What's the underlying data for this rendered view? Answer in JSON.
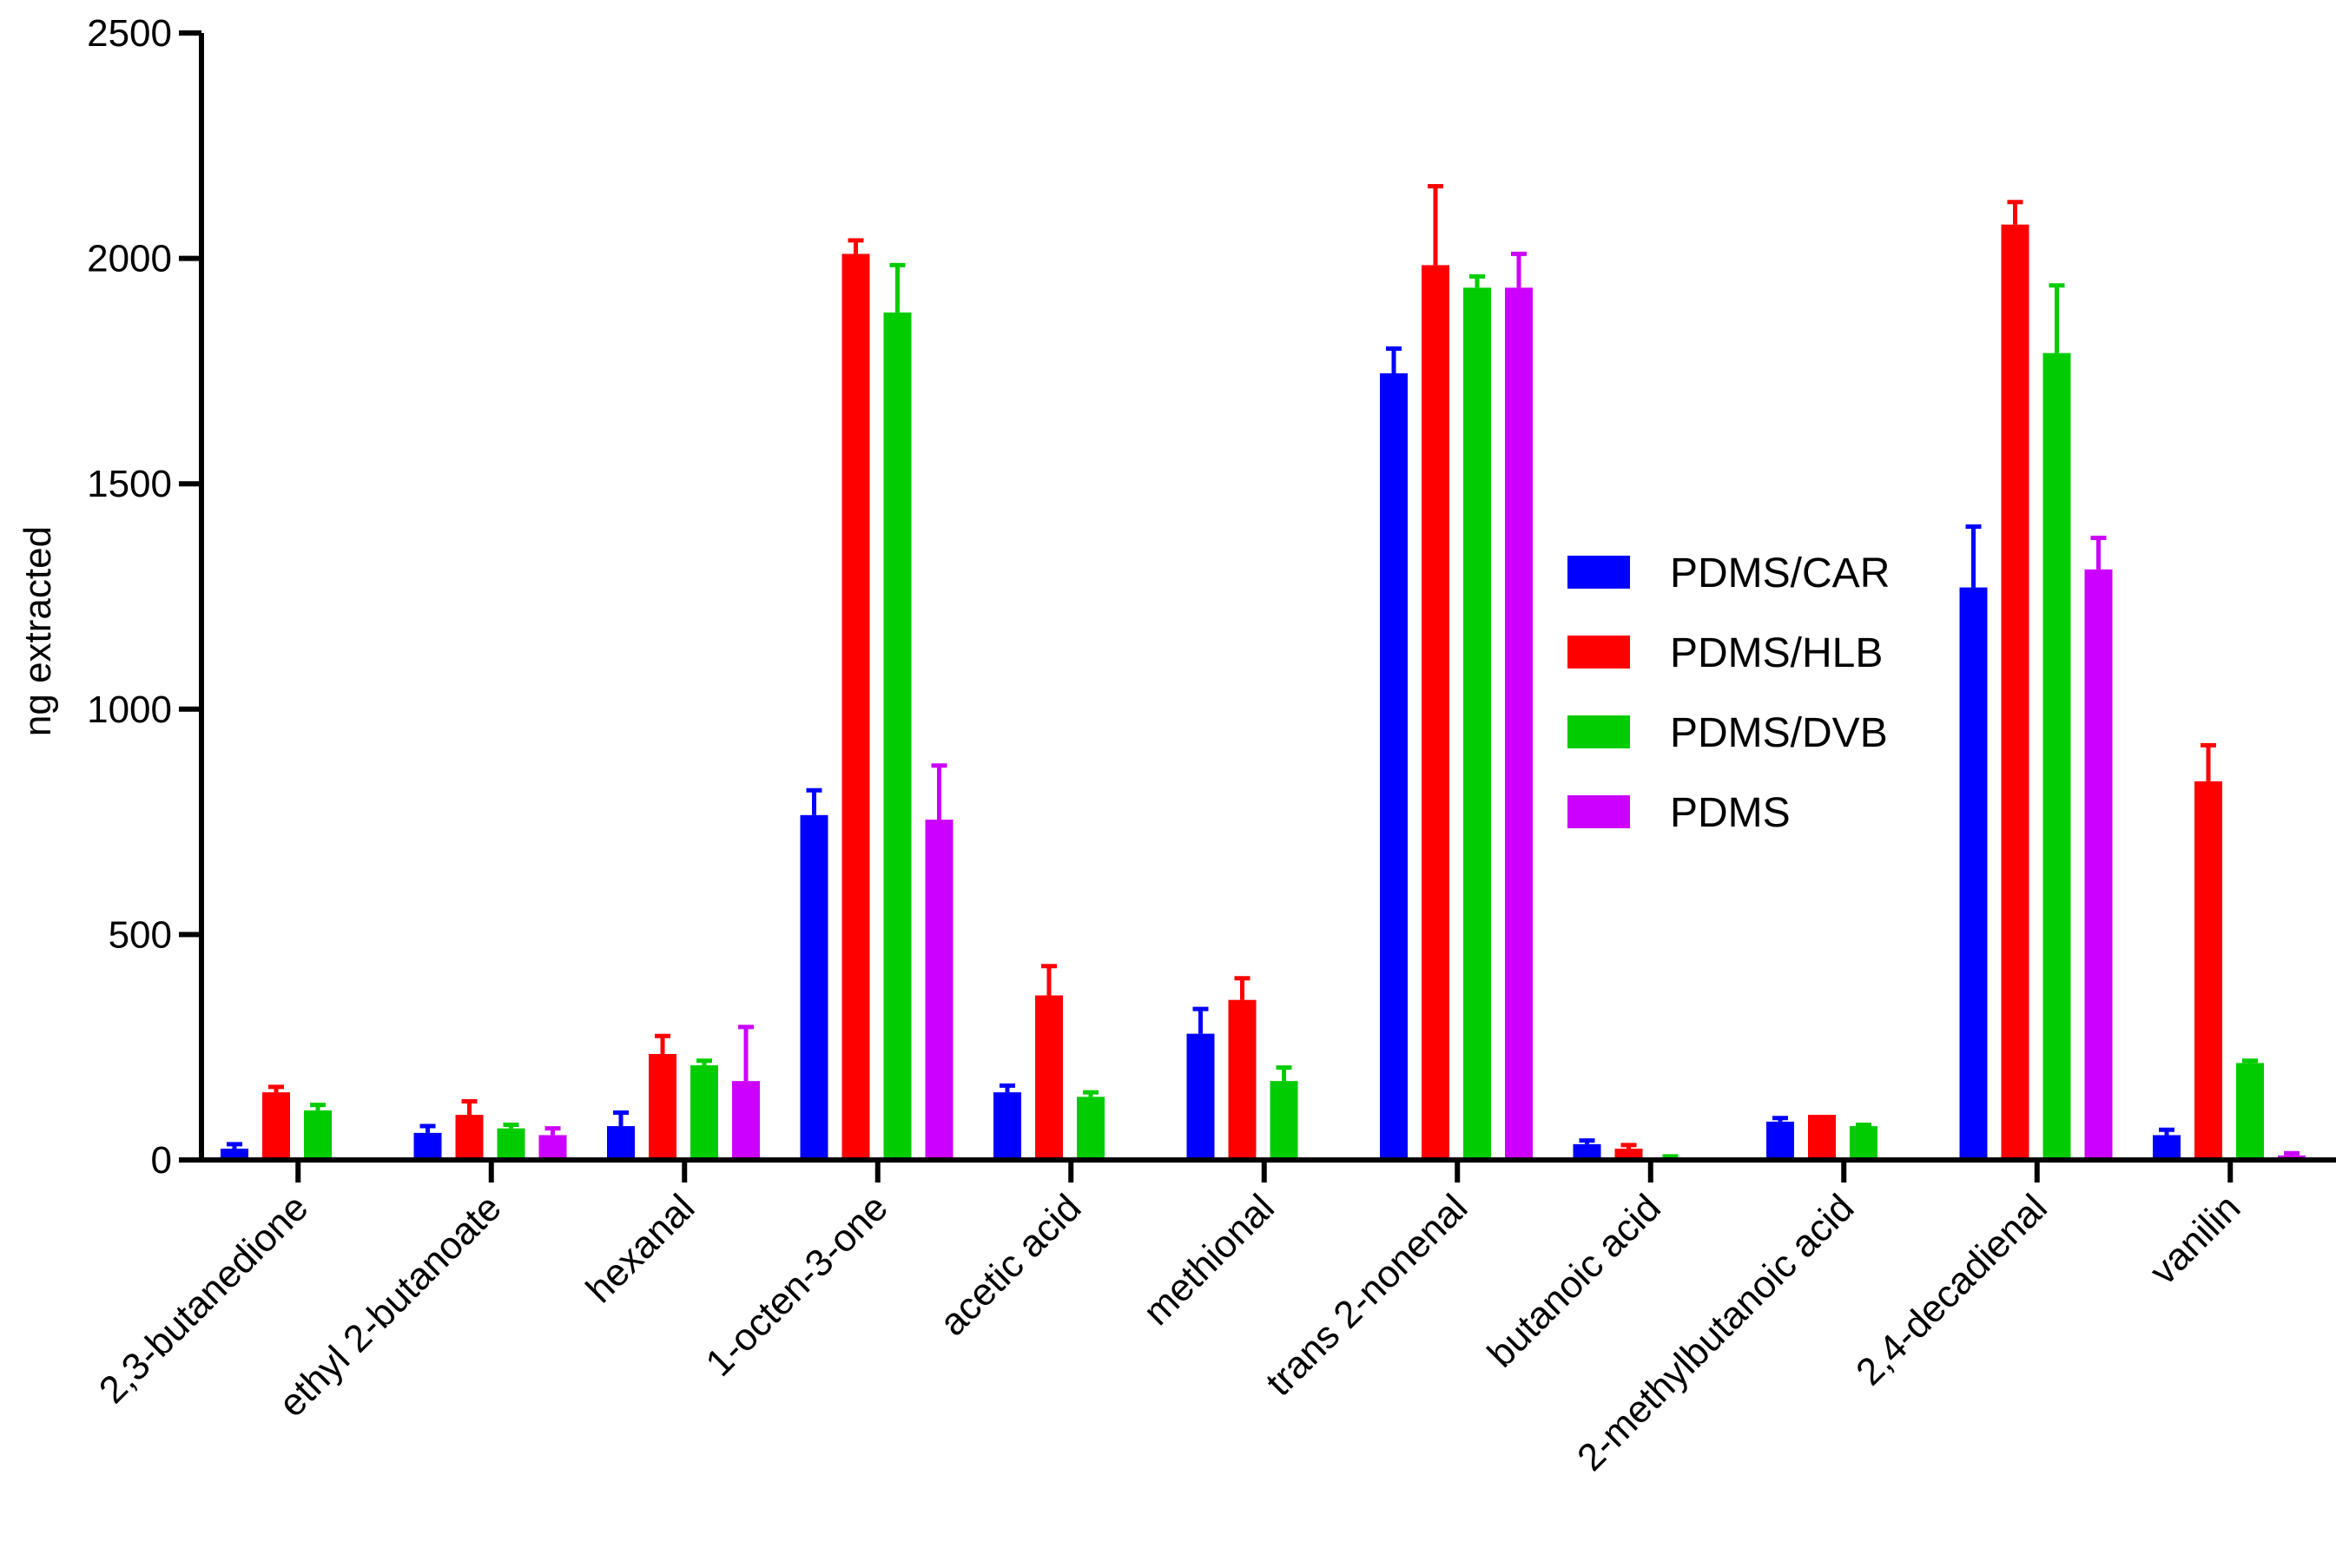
{
  "chart_data": {
    "type": "bar",
    "title": "",
    "xlabel": "",
    "ylabel": "ng extracted",
    "ylim": [
      0,
      2500
    ],
    "yticks": [
      0,
      500,
      1000,
      1500,
      2000,
      2500
    ],
    "grid": false,
    "legend_position": "center-right",
    "categories": [
      "2,3-butanedione",
      "ethyl 2-butanoate",
      "hexanal",
      "1-octen-3-one",
      "acetic acid",
      "methional",
      "trans 2-nonenal",
      "butanoic acid",
      "2-methylbutanoic acid",
      "2,4-decadienal",
      "vanilin"
    ],
    "series": [
      {
        "name": "PDMS/CAR",
        "color": "#0000ff",
        "values": [
          25,
          60,
          75,
          765,
          150,
          280,
          1745,
          35,
          85,
          1270,
          55
        ],
        "errors": [
          10,
          15,
          30,
          55,
          15,
          55,
          55,
          8,
          8,
          135,
          12
        ]
      },
      {
        "name": "PDMS/HLB",
        "color": "#ff0000",
        "values": [
          150,
          100,
          235,
          2010,
          365,
          355,
          1985,
          25,
          100,
          2075,
          840
        ],
        "errors": [
          12,
          30,
          40,
          30,
          65,
          48,
          175,
          8,
          0,
          50,
          80
        ]
      },
      {
        "name": "PDMS/DVB",
        "color": "#00cc00",
        "values": [
          110,
          70,
          210,
          1880,
          140,
          175,
          1935,
          5,
          75,
          1790,
          215
        ],
        "errors": [
          12,
          8,
          10,
          105,
          10,
          30,
          25,
          3,
          3,
          150,
          5
        ]
      },
      {
        "name": "PDMS",
        "color": "#cc00ff",
        "values": [
          0,
          55,
          175,
          755,
          0,
          0,
          1935,
          0,
          0,
          1310,
          10
        ],
        "errors": [
          0,
          15,
          120,
          120,
          0,
          0,
          75,
          0,
          0,
          70,
          5
        ]
      }
    ]
  }
}
